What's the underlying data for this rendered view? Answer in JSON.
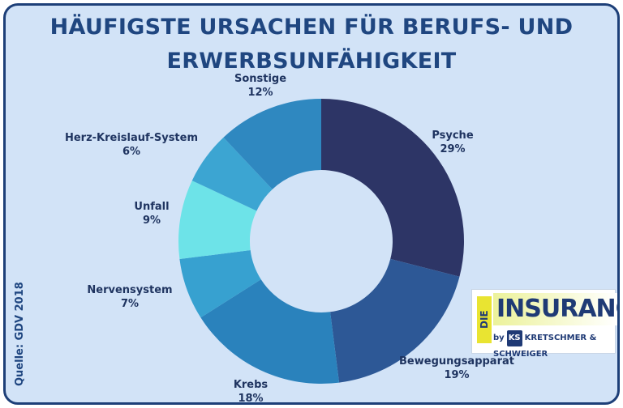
{
  "header": {
    "title_line1": "HÄUFIGSTE URSACHEN FÜR BERUFS- UND",
    "title_line2": "ERWERBSUNFÄHIGKEIT"
  },
  "chart_data": {
    "type": "pie",
    "style": "donut",
    "title": "HÄUFIGSTE URSACHEN FÜR BERUFS- UND ERWERBSUNFÄHIGKEIT",
    "slices": [
      {
        "label": "Psyche",
        "value": 29,
        "value_label": "29%",
        "color": "#2d3566"
      },
      {
        "label": "Bewegungsapparat",
        "value": 19,
        "value_label": "19%",
        "color": "#2d5896"
      },
      {
        "label": "Krebs",
        "value": 18,
        "value_label": "18%",
        "color": "#2a82bc"
      },
      {
        "label": "Nervensystem",
        "value": 7,
        "value_label": "7%",
        "color": "#37a1d0"
      },
      {
        "label": "Unfall",
        "value": 9,
        "value_label": "9%",
        "color": "#6de3e8"
      },
      {
        "label": "Herz-Kreislauf-System",
        "value": 6,
        "value_label": "6%",
        "color": "#3ca5d2"
      },
      {
        "label": "Sonstige",
        "value": 12,
        "value_label": "12%",
        "color": "#2f88c0"
      }
    ]
  },
  "source": "Quelle: GDV 2018",
  "logo": {
    "prefix": "DIE",
    "name": "INSURANCER",
    "by": "by",
    "ks": "KS",
    "company": "KRETSCHMER & SCHWEIGER"
  }
}
